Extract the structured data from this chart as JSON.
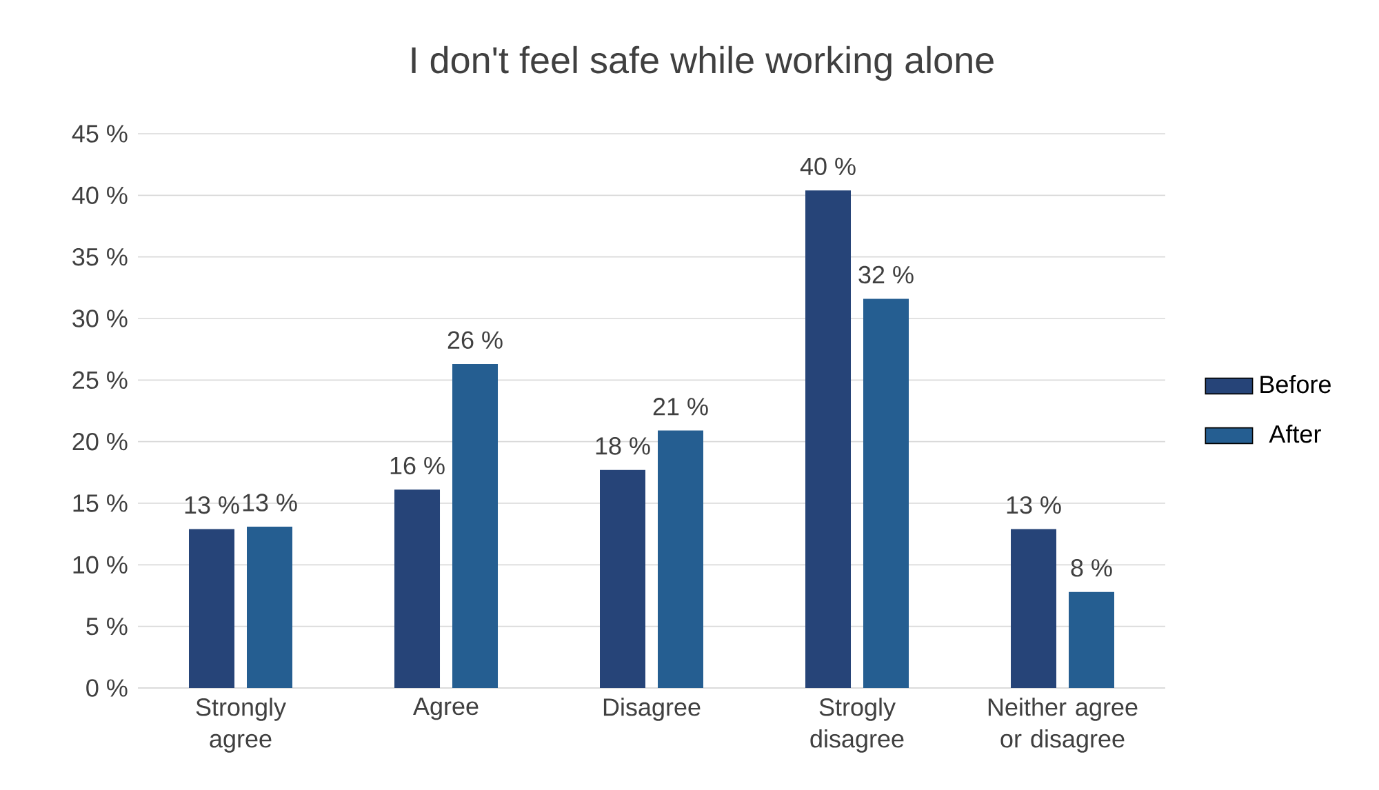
{
  "chart_data": {
    "type": "bar",
    "title": "I don't feel safe while working alone",
    "categories": [
      "Strongly agree",
      "Agree",
      "Disagree",
      "Strogly disagree",
      "Neither agree or disagree"
    ],
    "series": [
      {
        "name": "Before",
        "color": "#264478",
        "values": [
          12.9,
          16.1,
          17.7,
          40.4,
          12.9
        ],
        "value_labels": [
          "13 %",
          "16 %",
          "18 %",
          "40 %",
          "13 %"
        ]
      },
      {
        "name": "After",
        "color": "#255e91",
        "values": [
          13.1,
          26.3,
          20.9,
          31.6,
          7.8
        ],
        "value_labels": [
          "13 %",
          "26 %",
          "21 %",
          "32 %",
          "8 %"
        ]
      }
    ],
    "ylim": [
      0,
      45
    ],
    "yticks": [
      {
        "value": 0,
        "label": "0 %"
      },
      {
        "value": 5,
        "label": "5 %"
      },
      {
        "value": 10,
        "label": "10 %"
      },
      {
        "value": 15,
        "label": "15 %"
      },
      {
        "value": 20,
        "label": "20 %"
      },
      {
        "value": 25,
        "label": "25 %"
      },
      {
        "value": 30,
        "label": "30 %"
      },
      {
        "value": 35,
        "label": "35 %"
      },
      {
        "value": 40,
        "label": "40 %"
      },
      {
        "value": 45,
        "label": "45 %"
      }
    ],
    "grid": "y",
    "legend": "right"
  }
}
